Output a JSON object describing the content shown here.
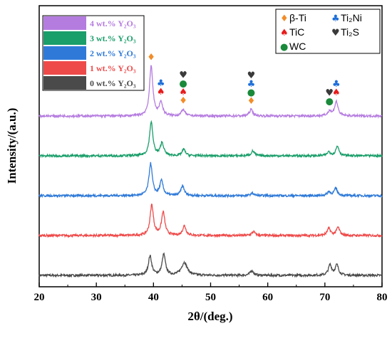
{
  "chart_data": {
    "type": "line",
    "xlabel": "2θ/(deg.)",
    "ylabel": "Intensity/(a.u.)",
    "xlim": [
      20,
      80
    ],
    "x_ticks": [
      "20",
      "30",
      "40",
      "50",
      "60",
      "70",
      "80"
    ],
    "y_ticks_visible": false,
    "grid": false,
    "baseline_offsets": [
      0,
      1,
      2,
      3,
      4
    ],
    "peak_width_deg": 0.35,
    "noise": 0.035,
    "series": [
      {
        "name": "0 wt.% Y₂O₃",
        "color": "#4a4a4a",
        "peaks": [
          [
            39.4,
            0.6
          ],
          [
            41.8,
            0.65
          ],
          [
            45.4,
            0.4,
            0.6
          ],
          [
            57.2,
            0.15
          ],
          [
            70.9,
            0.32
          ],
          [
            72.1,
            0.32
          ]
        ]
      },
      {
        "name": "1 wt.% Y₂O₃",
        "color": "#ef4a4a",
        "peaks": [
          [
            39.7,
            0.95
          ],
          [
            41.7,
            0.72
          ],
          [
            45.4,
            0.3
          ],
          [
            57.5,
            0.12
          ],
          [
            70.7,
            0.22
          ],
          [
            72.3,
            0.25
          ]
        ]
      },
      {
        "name": "2 wt.% Y₂O₃",
        "color": "#2f7ad8",
        "peaks": [
          [
            39.5,
            1.0
          ],
          [
            41.4,
            0.45
          ],
          [
            45.1,
            0.3
          ],
          [
            57.3,
            0.08
          ],
          [
            70.7,
            0.12
          ],
          [
            71.9,
            0.22
          ]
        ]
      },
      {
        "name": "3 wt.% Y₂O₃",
        "color": "#1a9e6a",
        "peaks": [
          [
            39.6,
            1.05
          ],
          [
            41.5,
            0.4
          ],
          [
            45.3,
            0.2
          ],
          [
            57.4,
            0.15
          ],
          [
            70.7,
            0.12
          ],
          [
            72.2,
            0.3
          ]
        ]
      },
      {
        "name": "4 wt.% Y₂O₃",
        "color": "#b57ce0",
        "peaks": [
          [
            39.6,
            1.55
          ],
          [
            41.3,
            0.42
          ],
          [
            45.2,
            0.2
          ],
          [
            57.1,
            0.2
          ],
          [
            70.8,
            0.15
          ],
          [
            72.0,
            0.45
          ]
        ]
      }
    ],
    "phases": [
      {
        "symbol": "♦",
        "name": "β-Ti",
        "color": "#f28c28"
      },
      {
        "symbol": "♣",
        "name": "Ti₂Ni",
        "color": "#1e6fd9"
      },
      {
        "symbol": "♠",
        "name": "TiC",
        "color": "#e81c1c"
      },
      {
        "symbol": "♥",
        "name": "Ti₂S",
        "color": "#3a3a3a"
      },
      {
        "symbol": "●",
        "name": "WC",
        "color": "#1a8a3a"
      }
    ],
    "peak_markers": [
      {
        "x": 39.6,
        "symbols": [
          "♦"
        ]
      },
      {
        "x": 41.3,
        "symbols": [
          "♣",
          "♠"
        ]
      },
      {
        "x": 45.2,
        "symbols": [
          "♥",
          "●",
          "♠",
          "♦"
        ]
      },
      {
        "x": 57.1,
        "symbols": [
          "♥",
          "♣",
          "●",
          "♦"
        ]
      },
      {
        "x": 70.8,
        "symbols": [
          "♥",
          "●"
        ]
      },
      {
        "x": 72.0,
        "symbols": [
          "♣",
          "♠"
        ]
      }
    ]
  }
}
